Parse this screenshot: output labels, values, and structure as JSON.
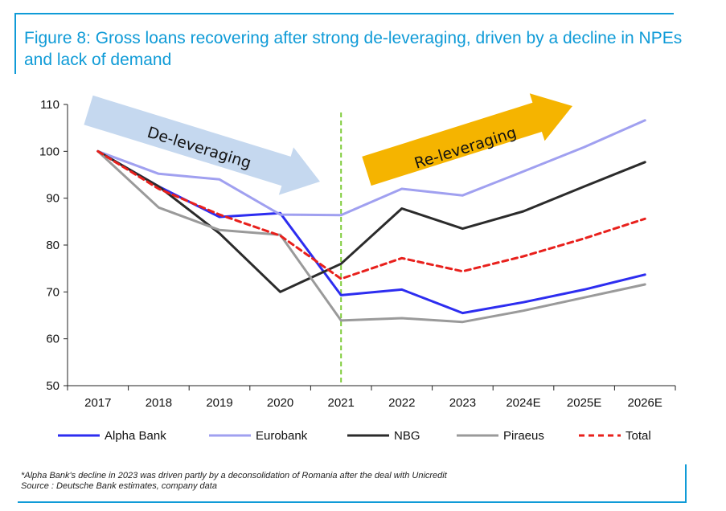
{
  "title": "Figure 8: Gross loans recovering after strong de-leveraging, driven by a decline in NPEs and lack of demand",
  "footnote": "*Alpha Bank's decline in 2023 was driven partly by a deconsolidation of Romania after the deal with Unicredit",
  "source": "Source : Deutsche Bank estimates, company data",
  "colors": {
    "accent": "#0f9bd7",
    "alpha": "#2d2df0",
    "eurobank": "#a0a0f0",
    "nbg": "#2b2b2b",
    "piraeus": "#9a9a9a",
    "total": "#e8201c",
    "divider": "#7fcc3c",
    "arrow_down": "#c5d8ef",
    "arrow_up": "#f5b400"
  },
  "annotations": {
    "deleveraging": "De-leveraging",
    "releveraging": "Re-leveraging"
  },
  "chart_data": {
    "type": "line",
    "x": [
      "2017",
      "2018",
      "2019",
      "2020",
      "2021",
      "2022",
      "2023",
      "2024E",
      "2025E",
      "2026E"
    ],
    "ylim": [
      50,
      110
    ],
    "yticks": [
      50,
      60,
      70,
      80,
      90,
      100,
      110
    ],
    "grid": false,
    "legend": "bottom",
    "vertical_marker_at": "2021",
    "series": [
      {
        "name": "Alpha Bank",
        "color": "#2d2df0",
        "dash": false,
        "values": [
          100,
          92.5,
          86,
          86.8,
          69.3,
          70.5,
          65.5,
          67.8,
          70.5,
          73.7
        ]
      },
      {
        "name": "Eurobank",
        "color": "#a0a0f0",
        "dash": false,
        "values": [
          100,
          95.2,
          94,
          86.5,
          86.4,
          92,
          90.6,
          95.7,
          100.9,
          106.6
        ]
      },
      {
        "name": "NBG",
        "color": "#2b2b2b",
        "dash": false,
        "values": [
          100,
          92.5,
          82.5,
          70,
          76,
          87.8,
          83.5,
          87.2,
          92.5,
          97.7
        ]
      },
      {
        "name": "Piraeus",
        "color": "#9a9a9a",
        "dash": false,
        "values": [
          100,
          88,
          83.2,
          82.2,
          63.9,
          64.4,
          63.6,
          66,
          68.8,
          71.6
        ]
      },
      {
        "name": "Total",
        "color": "#e8201c",
        "dash": true,
        "values": [
          100,
          92,
          86.5,
          82,
          72.8,
          77.2,
          74.4,
          77.6,
          81.4,
          85.6
        ]
      }
    ]
  }
}
